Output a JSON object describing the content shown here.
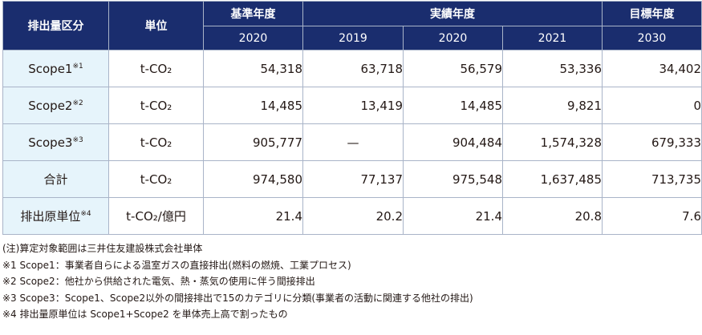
{
  "headers": {
    "category": "排出量区分",
    "unit": "単位",
    "base_year": "基準年度",
    "actual_years": "実績年度",
    "target_year": "目標年度",
    "years": [
      "2020",
      "2019",
      "2020",
      "2021",
      "2030"
    ]
  },
  "rows": [
    {
      "label": "Scope1",
      "mark": "※1",
      "unit": "t-CO₂",
      "values": [
        "54,318",
        "63,718",
        "56,579",
        "53,336",
        "34,402"
      ]
    },
    {
      "label": "Scope2",
      "mark": "※2",
      "unit": "t-CO₂",
      "values": [
        "14,485",
        "13,419",
        "14,485",
        "9,821",
        "0"
      ]
    },
    {
      "label": "Scope3",
      "mark": "※3",
      "unit": "t-CO₂",
      "values": [
        "905,777",
        "—",
        "904,484",
        "1,574,328",
        "679,333"
      ]
    },
    {
      "label": "合計",
      "mark": "",
      "unit": "t-CO₂",
      "values": [
        "974,580",
        "77,137",
        "975,548",
        "1,637,485",
        "713,735"
      ]
    },
    {
      "label": "排出原単位",
      "mark": "※4",
      "unit": "t-CO₂/億円",
      "values": [
        "21.4",
        "20.2",
        "21.4",
        "20.8",
        "7.6"
      ]
    }
  ],
  "notes": [
    "(注)算定対象範囲は三井住友建設株式会社単体",
    "※1  Scope1：事業者自らによる温室ガスの直接排出(燃料の燃焼、工業プロセス)",
    "※2  Scope2：他社から供給された電気、熱・蒸気の使用に伴う間接排出",
    "※3  Scope3：Scope1、Scope2以外の間接排出で15のカテゴリに分類(事業者の活動に関連する他社の排出)",
    "※4  排出量原単位は Scope1+Scope2 を単体売上高で割ったもの"
  ]
}
